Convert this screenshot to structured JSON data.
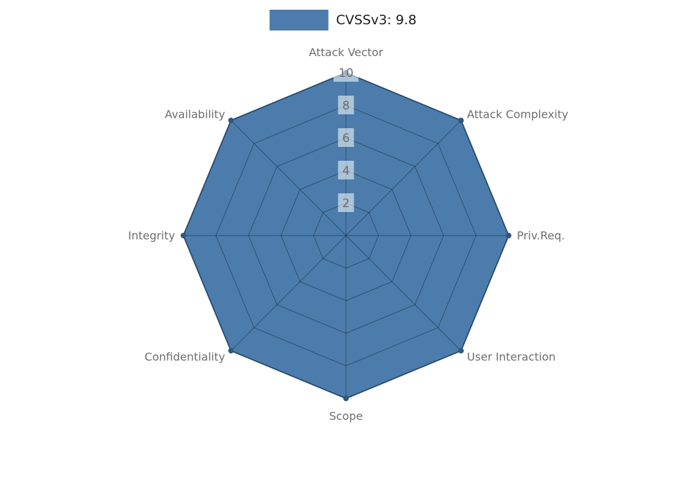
{
  "legend": {
    "label": "CVSSv3: 9.8",
    "swatch_color": "#4b7cac"
  },
  "chart_data": {
    "type": "radar",
    "title": "CVSSv3: 9.8",
    "categories": [
      "Attack Vector",
      "Attack Complexity",
      "Priv.Req.",
      "User Interaction",
      "Scope",
      "Confidentiality",
      "Integrity",
      "Availability"
    ],
    "series": [
      {
        "name": "CVSSv3: 9.8",
        "values": [
          10,
          10,
          10,
          10,
          10,
          10,
          10,
          10
        ]
      }
    ],
    "ticks": [
      2,
      4,
      6,
      8,
      10
    ],
    "rlim": [
      0,
      10
    ],
    "grid": true,
    "legend_position": "top-center",
    "fill_color": "#4b7cac",
    "stroke_color": "#38618c",
    "dot_color": "#2f587f",
    "grid_color": "rgba(0,0,0,0.35)",
    "tick_box_color": "rgba(255,255,255,0.55)",
    "tick_text_color": "#6e6e6e",
    "label_color": "#6d6d6d"
  }
}
